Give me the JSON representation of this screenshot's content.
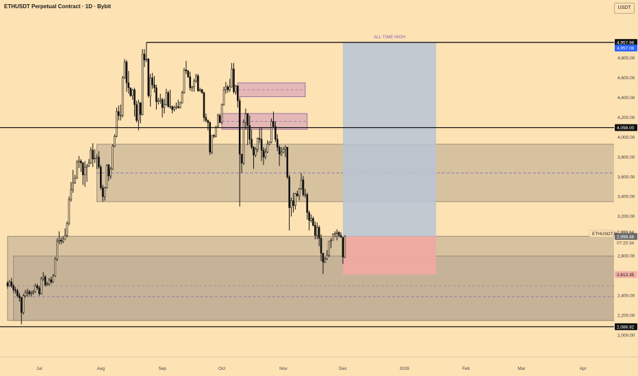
{
  "header": {
    "title": "ETHUSDT Perpetual Contract · 1D · Bybit",
    "currency_button": "USDT"
  },
  "annotations": {
    "ath_label": "ALL TIME HIGH",
    "symbol_label": "ETHUSDT.P",
    "last_price": "2,999.64",
    "countdown": "07:20:34"
  },
  "colors": {
    "background": "#fde2b4",
    "candle": "#111111",
    "zone_fill": "#b8a88f",
    "zone_stroke": "#8a7a68",
    "box_fill": "#d9a7b6",
    "box_stroke": "#8e6a9c",
    "projection_blue": "#b9c4d6",
    "projection_red": "#f2a9a2",
    "ath_badge": "#2962ff",
    "loss_badge": "#f5b1a9",
    "dash_line": "#7b5fb8"
  },
  "chart_data": {
    "type": "candlestick",
    "title": "ETHUSDT Perpetual Contract · 1D · Bybit",
    "timeframe": "1D",
    "y_axis": {
      "ticks": [
        2000,
        2200,
        2400,
        2600,
        2800,
        3000,
        3200,
        3400,
        3600,
        3800,
        4000,
        4200,
        4400,
        4600,
        4800
      ],
      "tick_labels": [
        "2,000.00",
        "2,200.00",
        "2,400.00",
        "2,600.00",
        "2,800.00",
        "3,000.00",
        "3,200.00",
        "3,400.00",
        "3,600.00",
        "3,800.00",
        "4,000.00",
        "4,200.00",
        "4,400.00",
        "4,600.00",
        "4,800.00"
      ],
      "range": [
        1900,
        5200
      ]
    },
    "x_axis": {
      "tick_labels": [
        "Jul",
        "Aug",
        "Sep",
        "Oct",
        "Nov",
        "Dec",
        "2026",
        "Feb",
        "Mar",
        "Apr"
      ],
      "tick_dates": [
        "2025-07-01",
        "2025-08-01",
        "2025-09-01",
        "2025-10-01",
        "2025-11-01",
        "2025-12-01",
        "2026-01-01",
        "2026-02-01",
        "2026-03-01",
        "2026-04-01"
      ],
      "range": [
        "2025-06-15",
        "2026-04-20"
      ]
    },
    "price_levels": [
      {
        "price": 4957.96,
        "label": "4,957.96",
        "style": "dark"
      },
      {
        "price": 4957.08,
        "label": "4,957.08",
        "style": "blue"
      },
      {
        "price": 4098.0,
        "label": "4,098.00",
        "style": "dark"
      },
      {
        "price": 2999.64,
        "label": "2,999.64",
        "style": "plain"
      },
      {
        "price": 2998.48,
        "label": "2,998.48",
        "style": "grey"
      },
      {
        "price": 2613.35,
        "label": "2,613.35",
        "style": "red"
      },
      {
        "price": 2086.92,
        "label": "2,086.92",
        "style": "dark"
      }
    ],
    "zones": [
      {
        "from": 3350,
        "to": 3930,
        "x_start": "2025-07-30",
        "x_end": "2026-04-20",
        "mid": 3640
      },
      {
        "from": 2150,
        "to": 3000,
        "x_start": "2025-06-15",
        "x_end": "2026-04-20",
        "mid": 2500
      },
      {
        "from": 2150,
        "to": 2800,
        "x_start": "2025-06-18",
        "x_end": "2026-04-20",
        "mid": 2390
      }
    ],
    "boxes": [
      {
        "from": 4410,
        "to": 4550,
        "x_start": "2025-10-09",
        "x_end": "2025-11-12"
      },
      {
        "from": 4080,
        "to": 4240,
        "x_start": "2025-10-01",
        "x_end": "2025-11-13"
      }
    ],
    "projection": {
      "x_start": "2025-12-01",
      "x_end": "2026-01-17",
      "entry": 2998.48,
      "target": 4957.08,
      "stop": 2613.35
    },
    "candles": [
      [
        "2025-06-15",
        2530,
        2550,
        2470,
        2500
      ],
      [
        "2025-06-16",
        2500,
        2560,
        2490,
        2540
      ],
      [
        "2025-06-17",
        2540,
        2580,
        2480,
        2500
      ],
      [
        "2025-06-18",
        2500,
        2520,
        2430,
        2460
      ],
      [
        "2025-06-19",
        2460,
        2490,
        2420,
        2450
      ],
      [
        "2025-06-20",
        2450,
        2470,
        2380,
        2400
      ],
      [
        "2025-06-21",
        2400,
        2430,
        2340,
        2380
      ],
      [
        "2025-06-22",
        2380,
        2390,
        2110,
        2230
      ],
      [
        "2025-06-23",
        2230,
        2420,
        2210,
        2400
      ],
      [
        "2025-06-24",
        2400,
        2460,
        2380,
        2430
      ],
      [
        "2025-06-25",
        2430,
        2470,
        2390,
        2440
      ],
      [
        "2025-06-26",
        2440,
        2460,
        2400,
        2420
      ],
      [
        "2025-06-27",
        2420,
        2450,
        2390,
        2430
      ],
      [
        "2025-06-28",
        2430,
        2460,
        2410,
        2440
      ],
      [
        "2025-06-29",
        2440,
        2520,
        2430,
        2500
      ],
      [
        "2025-06-30",
        2500,
        2520,
        2460,
        2480
      ],
      [
        "2025-07-01",
        2480,
        2500,
        2400,
        2420
      ],
      [
        "2025-07-02",
        2420,
        2590,
        2410,
        2570
      ],
      [
        "2025-07-03",
        2570,
        2640,
        2550,
        2590
      ],
      [
        "2025-07-04",
        2590,
        2610,
        2490,
        2510
      ],
      [
        "2025-07-05",
        2510,
        2540,
        2500,
        2520
      ],
      [
        "2025-07-06",
        2520,
        2580,
        2500,
        2560
      ],
      [
        "2025-07-07",
        2560,
        2590,
        2520,
        2540
      ],
      [
        "2025-07-08",
        2540,
        2620,
        2530,
        2600
      ],
      [
        "2025-07-09",
        2600,
        2790,
        2590,
        2770
      ],
      [
        "2025-07-10",
        2770,
        2980,
        2750,
        2950
      ],
      [
        "2025-07-11",
        2950,
        3050,
        2920,
        2960
      ],
      [
        "2025-07-12",
        2960,
        2990,
        2920,
        2950
      ],
      [
        "2025-07-13",
        2950,
        3000,
        2930,
        2970
      ],
      [
        "2025-07-14",
        2970,
        3080,
        2970,
        3010
      ],
      [
        "2025-07-15",
        3010,
        3150,
        2990,
        3130
      ],
      [
        "2025-07-16",
        3130,
        3400,
        3110,
        3370
      ],
      [
        "2025-07-17",
        3370,
        3550,
        3350,
        3470
      ],
      [
        "2025-07-18",
        3470,
        3670,
        3440,
        3540
      ],
      [
        "2025-07-19",
        3540,
        3620,
        3530,
        3590
      ],
      [
        "2025-07-20",
        3590,
        3770,
        3580,
        3750
      ],
      [
        "2025-07-21",
        3750,
        3810,
        3690,
        3760
      ],
      [
        "2025-07-22",
        3760,
        3780,
        3650,
        3740
      ],
      [
        "2025-07-23",
        3740,
        3750,
        3520,
        3620
      ],
      [
        "2025-07-24",
        3620,
        3760,
        3500,
        3700
      ],
      [
        "2025-07-25",
        3700,
        3730,
        3550,
        3710
      ],
      [
        "2025-07-26",
        3710,
        3780,
        3700,
        3740
      ],
      [
        "2025-07-27",
        3740,
        3900,
        3730,
        3870
      ],
      [
        "2025-07-28",
        3870,
        3940,
        3700,
        3780
      ],
      [
        "2025-07-29",
        3780,
        3880,
        3740,
        3790
      ],
      [
        "2025-07-30",
        3790,
        3830,
        3680,
        3800
      ],
      [
        "2025-07-31",
        3800,
        3860,
        3680,
        3700
      ],
      [
        "2025-08-01",
        3700,
        3720,
        3470,
        3490
      ],
      [
        "2025-08-02",
        3490,
        3520,
        3350,
        3400
      ],
      [
        "2025-08-03",
        3400,
        3500,
        3360,
        3490
      ],
      [
        "2025-08-04",
        3490,
        3730,
        3480,
        3720
      ],
      [
        "2025-08-05",
        3720,
        3730,
        3560,
        3610
      ],
      [
        "2025-08-06",
        3610,
        3700,
        3580,
        3680
      ],
      [
        "2025-08-07",
        3680,
        3930,
        3670,
        3910
      ],
      [
        "2025-08-08",
        3910,
        4030,
        3900,
        4010
      ],
      [
        "2025-08-09",
        4010,
        4300,
        4000,
        4260
      ],
      [
        "2025-08-10",
        4260,
        4320,
        4170,
        4220
      ],
      [
        "2025-08-11",
        4220,
        4330,
        4170,
        4220
      ],
      [
        "2025-08-12",
        4220,
        4620,
        4200,
        4600
      ],
      [
        "2025-08-13",
        4600,
        4790,
        4590,
        4760
      ],
      [
        "2025-08-14",
        4760,
        4780,
        4460,
        4550
      ],
      [
        "2025-08-15",
        4550,
        4670,
        4440,
        4500
      ],
      [
        "2025-08-16",
        4500,
        4480,
        4410,
        4420
      ],
      [
        "2025-08-17",
        4420,
        4490,
        4380,
        4480
      ],
      [
        "2025-08-18",
        4480,
        4500,
        4210,
        4330
      ],
      [
        "2025-08-19",
        4330,
        4370,
        4150,
        4170
      ],
      [
        "2025-08-20",
        4170,
        4380,
        4070,
        4350
      ],
      [
        "2025-08-21",
        4350,
        4350,
        4140,
        4230
      ],
      [
        "2025-08-22",
        4230,
        4890,
        4220,
        4840
      ],
      [
        "2025-08-23",
        4840,
        4890,
        4710,
        4780
      ],
      [
        "2025-08-24",
        4780,
        4957.96,
        4760,
        4790
      ],
      [
        "2025-08-25",
        4790,
        4800,
        4400,
        4420
      ],
      [
        "2025-08-26",
        4420,
        4640,
        4310,
        4600
      ],
      [
        "2025-08-27",
        4600,
        4650,
        4490,
        4530
      ],
      [
        "2025-08-28",
        4530,
        4620,
        4450,
        4500
      ],
      [
        "2025-08-29",
        4500,
        4530,
        4280,
        4360
      ],
      [
        "2025-08-30",
        4360,
        4400,
        4330,
        4370
      ],
      [
        "2025-08-31",
        4370,
        4440,
        4340,
        4380
      ],
      [
        "2025-09-01",
        4380,
        4400,
        4200,
        4300
      ],
      [
        "2025-09-02",
        4300,
        4390,
        4240,
        4330
      ],
      [
        "2025-09-03",
        4330,
        4490,
        4320,
        4450
      ],
      [
        "2025-09-04",
        4450,
        4470,
        4300,
        4310
      ],
      [
        "2025-09-05",
        4310,
        4480,
        4290,
        4310
      ],
      [
        "2025-09-06",
        4310,
        4320,
        4240,
        4280
      ],
      [
        "2025-09-07",
        4280,
        4320,
        4260,
        4300
      ],
      [
        "2025-09-08",
        4300,
        4350,
        4280,
        4310
      ],
      [
        "2025-09-09",
        4310,
        4380,
        4290,
        4300
      ],
      [
        "2025-09-10",
        4300,
        4360,
        4290,
        4350
      ],
      [
        "2025-09-11",
        4350,
        4470,
        4340,
        4450
      ],
      [
        "2025-09-12",
        4450,
        4700,
        4440,
        4680
      ],
      [
        "2025-09-13",
        4680,
        4770,
        4640,
        4670
      ],
      [
        "2025-09-14",
        4670,
        4680,
        4600,
        4610
      ],
      [
        "2025-09-15",
        4610,
        4660,
        4470,
        4500
      ],
      [
        "2025-09-16",
        4500,
        4520,
        4460,
        4510
      ],
      [
        "2025-09-17",
        4510,
        4590,
        4460,
        4570
      ],
      [
        "2025-09-18",
        4570,
        4640,
        4550,
        4620
      ],
      [
        "2025-09-19",
        4620,
        4640,
        4460,
        4470
      ],
      [
        "2025-09-20",
        4470,
        4500,
        4460,
        4480
      ],
      [
        "2025-09-21",
        4480,
        4490,
        4440,
        4450
      ],
      [
        "2025-09-22",
        4450,
        4460,
        4160,
        4200
      ],
      [
        "2025-09-23",
        4200,
        4240,
        4150,
        4170
      ],
      [
        "2025-09-24",
        4170,
        4180,
        4070,
        4150
      ],
      [
        "2025-09-25",
        4150,
        4160,
        3820,
        3850
      ],
      [
        "2025-09-26",
        3850,
        4020,
        3830,
        4020
      ],
      [
        "2025-09-27",
        4020,
        4030,
        3990,
        4010
      ],
      [
        "2025-09-28",
        4010,
        4110,
        4000,
        4110
      ],
      [
        "2025-09-29",
        4110,
        4240,
        4100,
        4220
      ],
      [
        "2025-09-30",
        4220,
        4240,
        4140,
        4150
      ],
      [
        "2025-10-01",
        4150,
        4340,
        4130,
        4330
      ],
      [
        "2025-10-02",
        4330,
        4510,
        4320,
        4480
      ],
      [
        "2025-10-03",
        4480,
        4560,
        4440,
        4510
      ],
      [
        "2025-10-04",
        4510,
        4530,
        4450,
        4480
      ],
      [
        "2025-10-05",
        4480,
        4590,
        4460,
        4510
      ],
      [
        "2025-10-06",
        4510,
        4750,
        4500,
        4690
      ],
      [
        "2025-10-07",
        4690,
        4750,
        4440,
        4460
      ],
      [
        "2025-10-08",
        4460,
        4530,
        4430,
        4520
      ],
      [
        "2025-10-09",
        4520,
        4520,
        4300,
        4370
      ],
      [
        "2025-10-10",
        4370,
        4400,
        3300,
        3830
      ],
      [
        "2025-10-11",
        3830,
        3830,
        3640,
        3740
      ],
      [
        "2025-10-12",
        3740,
        4180,
        3720,
        4150
      ],
      [
        "2025-10-13",
        4150,
        4290,
        4080,
        4240
      ],
      [
        "2025-10-14",
        4240,
        4230,
        3920,
        4120
      ],
      [
        "2025-10-15",
        4120,
        4220,
        3930,
        3980
      ],
      [
        "2025-10-16",
        3980,
        4080,
        3880,
        3900
      ],
      [
        "2025-10-17",
        3900,
        3910,
        3680,
        3820
      ],
      [
        "2025-10-18",
        3820,
        3900,
        3800,
        3880
      ],
      [
        "2025-10-19",
        3880,
        4000,
        3850,
        3990
      ],
      [
        "2025-10-20",
        3990,
        4090,
        3940,
        3980
      ],
      [
        "2025-10-21",
        3980,
        4100,
        3760,
        3870
      ],
      [
        "2025-10-22",
        3870,
        3900,
        3720,
        3800
      ],
      [
        "2025-10-23",
        3800,
        3890,
        3780,
        3850
      ],
      [
        "2025-10-24",
        3850,
        3970,
        3840,
        3930
      ],
      [
        "2025-10-25",
        3930,
        3960,
        3920,
        3950
      ],
      [
        "2025-10-26",
        3950,
        4190,
        3940,
        4160
      ],
      [
        "2025-10-27",
        4160,
        4260,
        4100,
        4110
      ],
      [
        "2025-10-28",
        4110,
        4160,
        3950,
        3980
      ],
      [
        "2025-10-29",
        3980,
        4030,
        3860,
        3900
      ],
      [
        "2025-10-30",
        3900,
        3920,
        3710,
        3830
      ],
      [
        "2025-10-31",
        3830,
        3900,
        3810,
        3850
      ],
      [
        "2025-11-01",
        3850,
        3900,
        3840,
        3880
      ],
      [
        "2025-11-02",
        3880,
        3920,
        3800,
        3900
      ],
      [
        "2025-11-03",
        3900,
        3900,
        3580,
        3600
      ],
      [
        "2025-11-04",
        3600,
        3620,
        3060,
        3290
      ],
      [
        "2025-11-05",
        3290,
        3390,
        3200,
        3360
      ],
      [
        "2025-11-06",
        3360,
        3440,
        3240,
        3310
      ],
      [
        "2025-11-07",
        3310,
        3440,
        3270,
        3430
      ],
      [
        "2025-11-08",
        3430,
        3460,
        3400,
        3410
      ],
      [
        "2025-11-09",
        3410,
        3490,
        3360,
        3480
      ],
      [
        "2025-11-10",
        3480,
        3640,
        3470,
        3570
      ],
      [
        "2025-11-11",
        3570,
        3610,
        3400,
        3420
      ],
      [
        "2025-11-12",
        3420,
        3480,
        3390,
        3420
      ],
      [
        "2025-11-13",
        3420,
        3440,
        3170,
        3240
      ],
      [
        "2025-11-14",
        3240,
        3260,
        3060,
        3160
      ],
      [
        "2025-11-15",
        3160,
        3220,
        3140,
        3180
      ],
      [
        "2025-11-16",
        3180,
        3200,
        3100,
        3110
      ],
      [
        "2025-11-17",
        3110,
        3150,
        2970,
        3010
      ],
      [
        "2025-11-18",
        3010,
        3140,
        2970,
        3090
      ],
      [
        "2025-11-19",
        3090,
        3110,
        2900,
        2980
      ],
      [
        "2025-11-20",
        2980,
        3020,
        2750,
        2830
      ],
      [
        "2025-11-21",
        2830,
        2830,
        2620,
        2740
      ],
      [
        "2025-11-22",
        2740,
        2790,
        2730,
        2770
      ],
      [
        "2025-11-23",
        2770,
        2860,
        2760,
        2810
      ],
      [
        "2025-11-24",
        2810,
        2920,
        2790,
        2950
      ],
      [
        "2025-11-25",
        2950,
        2980,
        2880,
        2960
      ],
      [
        "2025-11-26",
        2960,
        3030,
        2960,
        3020
      ],
      [
        "2025-11-27",
        3020,
        3050,
        2990,
        3030
      ],
      [
        "2025-11-28",
        3030,
        3070,
        2960,
        3040
      ],
      [
        "2025-11-29",
        3040,
        3050,
        2990,
        3010
      ],
      [
        "2025-11-30",
        3010,
        3040,
        2990,
        2990
      ],
      [
        "2025-12-01",
        2990,
        2990,
        2720,
        2790
      ],
      [
        "2025-12-02",
        2790,
        3010,
        2780,
        2999.64
      ]
    ]
  }
}
